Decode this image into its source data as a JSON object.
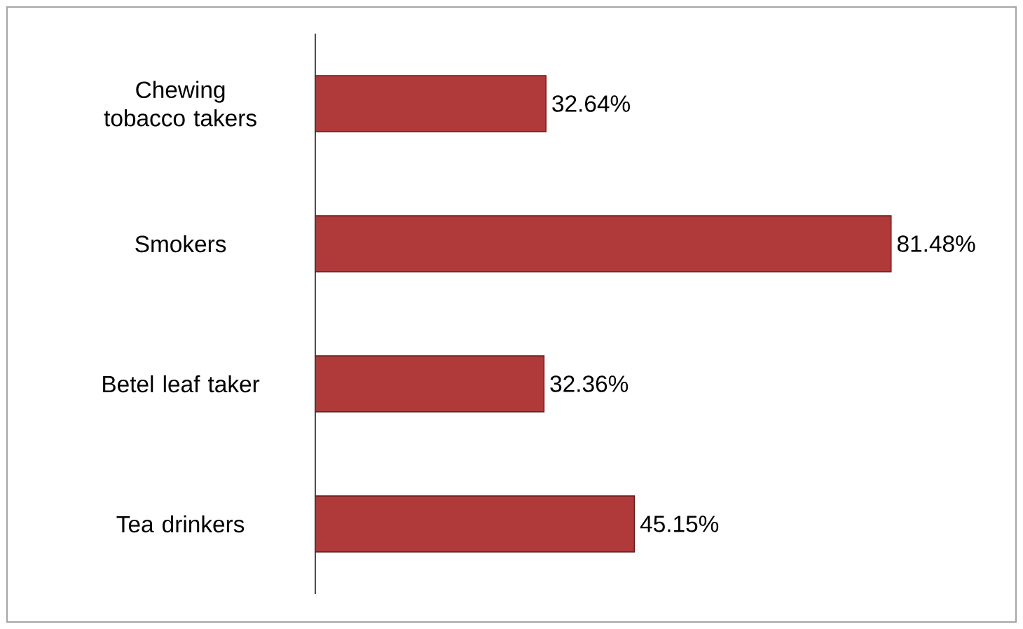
{
  "chart_data": {
    "type": "bar",
    "orientation": "horizontal",
    "categories": [
      "Chewing tobacco takers",
      "Smokers",
      "Betel leaf taker",
      "Tea drinkers"
    ],
    "values": [
      32.64,
      81.48,
      32.36,
      45.15
    ],
    "color": "#b03a3a",
    "value_labels": [
      "32.64%",
      "81.48%",
      "32.36%",
      "45.15%"
    ]
  }
}
